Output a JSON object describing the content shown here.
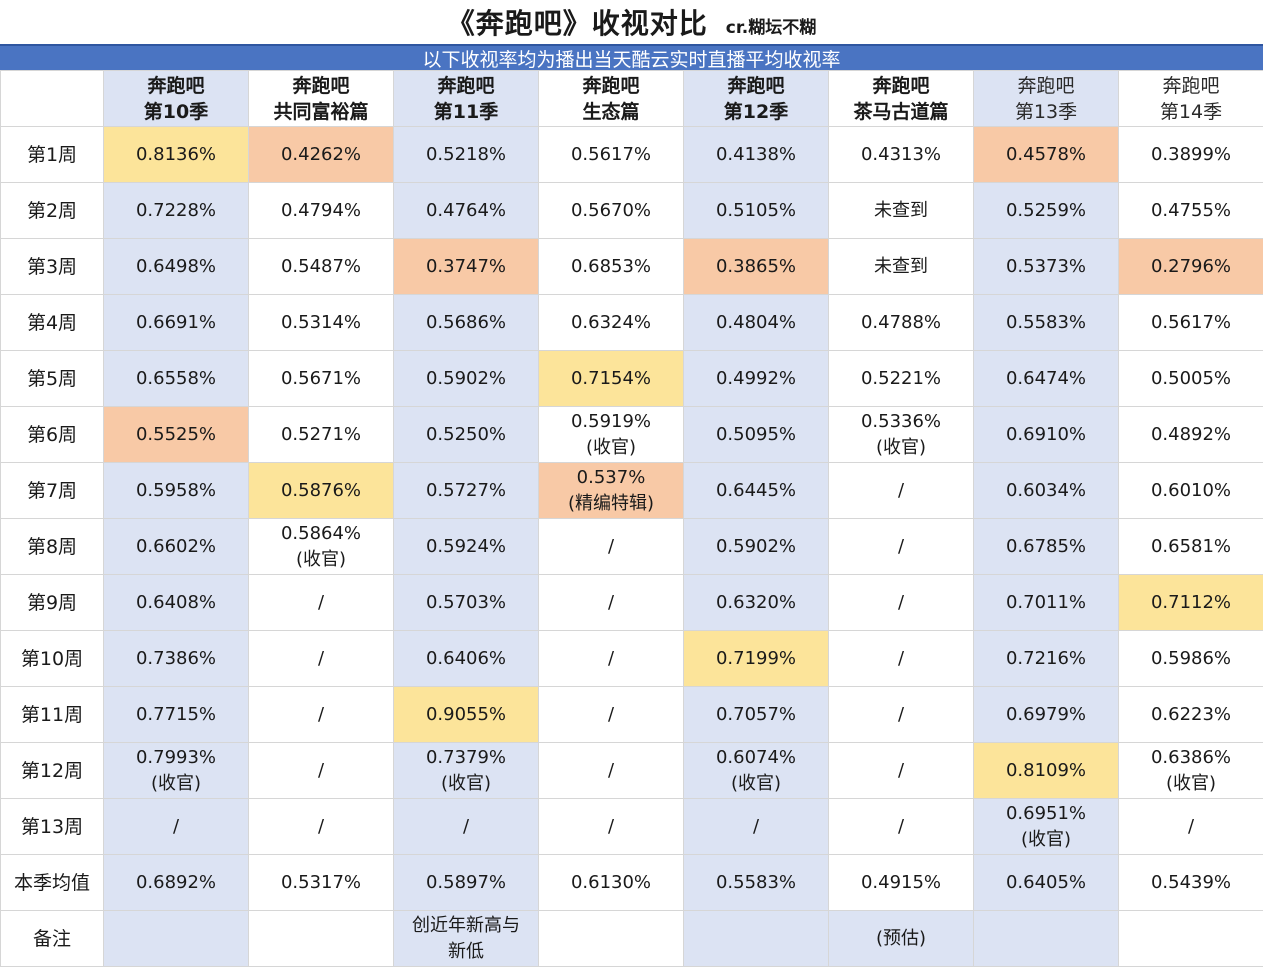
{
  "title": "《奔跑吧》收视对比",
  "credit": "cr.糊坛不糊",
  "subtitle": "以下收视率均为播出当天酷云实时直播平均收视率",
  "columns": [
    {
      "line1": "奔跑吧",
      "line2": "第10季"
    },
    {
      "line1": "奔跑吧",
      "line2": "共同富裕篇"
    },
    {
      "line1": "奔跑吧",
      "line2": "第11季"
    },
    {
      "line1": "奔跑吧",
      "line2": "生态篇"
    },
    {
      "line1": "奔跑吧",
      "line2": "第12季"
    },
    {
      "line1": "奔跑吧",
      "line2": "茶马古道篇"
    },
    {
      "line1": "奔跑吧",
      "line2": "第13季"
    },
    {
      "line1": "奔跑吧",
      "line2": "第14季"
    }
  ],
  "rows": [
    {
      "label": "第1周",
      "cells": [
        {
          "v": "0.8136%",
          "n": "",
          "hl": "yellow"
        },
        {
          "v": "0.4262%",
          "n": "",
          "hl": "orange"
        },
        {
          "v": "0.5218%",
          "n": "",
          "hl": ""
        },
        {
          "v": "0.5617%",
          "n": "",
          "hl": ""
        },
        {
          "v": "0.4138%",
          "n": "",
          "hl": ""
        },
        {
          "v": "0.4313%",
          "n": "",
          "hl": ""
        },
        {
          "v": "0.4578%",
          "n": "",
          "hl": "orange"
        },
        {
          "v": "0.3899%",
          "n": "",
          "hl": ""
        }
      ]
    },
    {
      "label": "第2周",
      "cells": [
        {
          "v": "0.7228%",
          "n": "",
          "hl": ""
        },
        {
          "v": "0.4794%",
          "n": "",
          "hl": ""
        },
        {
          "v": "0.4764%",
          "n": "",
          "hl": ""
        },
        {
          "v": "0.5670%",
          "n": "",
          "hl": ""
        },
        {
          "v": "0.5105%",
          "n": "",
          "hl": ""
        },
        {
          "v": "未查到",
          "n": "",
          "hl": ""
        },
        {
          "v": "0.5259%",
          "n": "",
          "hl": ""
        },
        {
          "v": "0.4755%",
          "n": "",
          "hl": ""
        }
      ]
    },
    {
      "label": "第3周",
      "cells": [
        {
          "v": "0.6498%",
          "n": "",
          "hl": ""
        },
        {
          "v": "0.5487%",
          "n": "",
          "hl": ""
        },
        {
          "v": "0.3747%",
          "n": "",
          "hl": "orange"
        },
        {
          "v": "0.6853%",
          "n": "",
          "hl": ""
        },
        {
          "v": "0.3865%",
          "n": "",
          "hl": "orange"
        },
        {
          "v": "未查到",
          "n": "",
          "hl": ""
        },
        {
          "v": "0.5373%",
          "n": "",
          "hl": ""
        },
        {
          "v": "0.2796%",
          "n": "",
          "hl": "orange"
        }
      ]
    },
    {
      "label": "第4周",
      "cells": [
        {
          "v": "0.6691%",
          "n": "",
          "hl": ""
        },
        {
          "v": "0.5314%",
          "n": "",
          "hl": ""
        },
        {
          "v": "0.5686%",
          "n": "",
          "hl": ""
        },
        {
          "v": "0.6324%",
          "n": "",
          "hl": ""
        },
        {
          "v": "0.4804%",
          "n": "",
          "hl": ""
        },
        {
          "v": "0.4788%",
          "n": "",
          "hl": ""
        },
        {
          "v": "0.5583%",
          "n": "",
          "hl": ""
        },
        {
          "v": "0.5617%",
          "n": "",
          "hl": ""
        }
      ]
    },
    {
      "label": "第5周",
      "cells": [
        {
          "v": "0.6558%",
          "n": "",
          "hl": ""
        },
        {
          "v": "0.5671%",
          "n": "",
          "hl": ""
        },
        {
          "v": "0.5902%",
          "n": "",
          "hl": ""
        },
        {
          "v": "0.7154%",
          "n": "",
          "hl": "yellow"
        },
        {
          "v": "0.4992%",
          "n": "",
          "hl": ""
        },
        {
          "v": "0.5221%",
          "n": "",
          "hl": ""
        },
        {
          "v": "0.6474%",
          "n": "",
          "hl": ""
        },
        {
          "v": "0.5005%",
          "n": "",
          "hl": ""
        }
      ]
    },
    {
      "label": "第6周",
      "cells": [
        {
          "v": "0.5525%",
          "n": "",
          "hl": "orange"
        },
        {
          "v": "0.5271%",
          "n": "",
          "hl": ""
        },
        {
          "v": "0.5250%",
          "n": "",
          "hl": ""
        },
        {
          "v": "0.5919%",
          "n": "(收官)",
          "hl": ""
        },
        {
          "v": "0.5095%",
          "n": "",
          "hl": ""
        },
        {
          "v": "0.5336%",
          "n": "(收官)",
          "hl": ""
        },
        {
          "v": "0.6910%",
          "n": "",
          "hl": ""
        },
        {
          "v": "0.4892%",
          "n": "",
          "hl": ""
        }
      ]
    },
    {
      "label": "第7周",
      "cells": [
        {
          "v": "0.5958%",
          "n": "",
          "hl": ""
        },
        {
          "v": "0.5876%",
          "n": "",
          "hl": "yellow"
        },
        {
          "v": "0.5727%",
          "n": "",
          "hl": ""
        },
        {
          "v": "0.537%",
          "n": "(精编特辑)",
          "hl": "orange"
        },
        {
          "v": "0.6445%",
          "n": "",
          "hl": ""
        },
        {
          "v": "/",
          "n": "",
          "hl": ""
        },
        {
          "v": "0.6034%",
          "n": "",
          "hl": ""
        },
        {
          "v": "0.6010%",
          "n": "",
          "hl": ""
        }
      ]
    },
    {
      "label": "第8周",
      "cells": [
        {
          "v": "0.6602%",
          "n": "",
          "hl": ""
        },
        {
          "v": "0.5864%",
          "n": "(收官)",
          "hl": ""
        },
        {
          "v": "0.5924%",
          "n": "",
          "hl": ""
        },
        {
          "v": "/",
          "n": "",
          "hl": ""
        },
        {
          "v": "0.5902%",
          "n": "",
          "hl": ""
        },
        {
          "v": "/",
          "n": "",
          "hl": ""
        },
        {
          "v": "0.6785%",
          "n": "",
          "hl": ""
        },
        {
          "v": "0.6581%",
          "n": "",
          "hl": ""
        }
      ]
    },
    {
      "label": "第9周",
      "cells": [
        {
          "v": "0.6408%",
          "n": "",
          "hl": ""
        },
        {
          "v": "/",
          "n": "",
          "hl": ""
        },
        {
          "v": "0.5703%",
          "n": "",
          "hl": ""
        },
        {
          "v": "/",
          "n": "",
          "hl": ""
        },
        {
          "v": "0.6320%",
          "n": "",
          "hl": ""
        },
        {
          "v": "/",
          "n": "",
          "hl": ""
        },
        {
          "v": "0.7011%",
          "n": "",
          "hl": ""
        },
        {
          "v": "0.7112%",
          "n": "",
          "hl": "yellow"
        }
      ]
    },
    {
      "label": "第10周",
      "cells": [
        {
          "v": "0.7386%",
          "n": "",
          "hl": ""
        },
        {
          "v": "/",
          "n": "",
          "hl": ""
        },
        {
          "v": "0.6406%",
          "n": "",
          "hl": ""
        },
        {
          "v": "/",
          "n": "",
          "hl": ""
        },
        {
          "v": "0.7199%",
          "n": "",
          "hl": "yellow"
        },
        {
          "v": "/",
          "n": "",
          "hl": ""
        },
        {
          "v": "0.7216%",
          "n": "",
          "hl": ""
        },
        {
          "v": "0.5986%",
          "n": "",
          "hl": ""
        }
      ]
    },
    {
      "label": "第11周",
      "cells": [
        {
          "v": "0.7715%",
          "n": "",
          "hl": ""
        },
        {
          "v": "/",
          "n": "",
          "hl": ""
        },
        {
          "v": "0.9055%",
          "n": "",
          "hl": "yellow"
        },
        {
          "v": "/",
          "n": "",
          "hl": ""
        },
        {
          "v": "0.7057%",
          "n": "",
          "hl": ""
        },
        {
          "v": "/",
          "n": "",
          "hl": ""
        },
        {
          "v": "0.6979%",
          "n": "",
          "hl": ""
        },
        {
          "v": "0.6223%",
          "n": "",
          "hl": ""
        }
      ]
    },
    {
      "label": "第12周",
      "cells": [
        {
          "v": "0.7993%",
          "n": "(收官)",
          "hl": ""
        },
        {
          "v": "/",
          "n": "",
          "hl": ""
        },
        {
          "v": "0.7379%",
          "n": "(收官)",
          "hl": ""
        },
        {
          "v": "/",
          "n": "",
          "hl": ""
        },
        {
          "v": "0.6074%",
          "n": "(收官)",
          "hl": ""
        },
        {
          "v": "/",
          "n": "",
          "hl": ""
        },
        {
          "v": "0.8109%",
          "n": "",
          "hl": "yellow"
        },
        {
          "v": "0.6386%",
          "n": "(收官)",
          "hl": ""
        }
      ]
    },
    {
      "label": "第13周",
      "cells": [
        {
          "v": "/",
          "n": "",
          "hl": ""
        },
        {
          "v": "/",
          "n": "",
          "hl": ""
        },
        {
          "v": "/",
          "n": "",
          "hl": ""
        },
        {
          "v": "/",
          "n": "",
          "hl": ""
        },
        {
          "v": "/",
          "n": "",
          "hl": ""
        },
        {
          "v": "/",
          "n": "",
          "hl": ""
        },
        {
          "v": "0.6951%",
          "n": "(收官)",
          "hl": ""
        },
        {
          "v": "/",
          "n": "",
          "hl": ""
        }
      ]
    },
    {
      "label": "本季均值",
      "cells": [
        {
          "v": "0.6892%",
          "n": "",
          "hl": ""
        },
        {
          "v": "0.5317%",
          "n": "",
          "hl": ""
        },
        {
          "v": "0.5897%",
          "n": "",
          "hl": ""
        },
        {
          "v": "0.6130%",
          "n": "",
          "hl": ""
        },
        {
          "v": "0.5583%",
          "n": "",
          "hl": ""
        },
        {
          "v": "0.4915%",
          "n": "",
          "hl": ""
        },
        {
          "v": "0.6405%",
          "n": "",
          "hl": ""
        },
        {
          "v": "0.5439%",
          "n": "",
          "hl": ""
        }
      ]
    },
    {
      "label": "备注",
      "cells": [
        {
          "v": "",
          "n": "",
          "hl": ""
        },
        {
          "v": "",
          "n": "",
          "hl": ""
        },
        {
          "v": "创近年新高与",
          "n": "新低",
          "hl": ""
        },
        {
          "v": "",
          "n": "",
          "hl": ""
        },
        {
          "v": "",
          "n": "",
          "hl": ""
        },
        {
          "v": "(预估)",
          "n": "",
          "hl": ""
        },
        {
          "v": "",
          "n": "",
          "hl": ""
        },
        {
          "v": "",
          "n": "",
          "hl": ""
        }
      ]
    }
  ],
  "colors": {
    "blue_column": "#dce3f3",
    "orange_low": "#f8c9a6",
    "yellow_high": "#fce49a",
    "subtitle_bar": "#4a74c2"
  }
}
